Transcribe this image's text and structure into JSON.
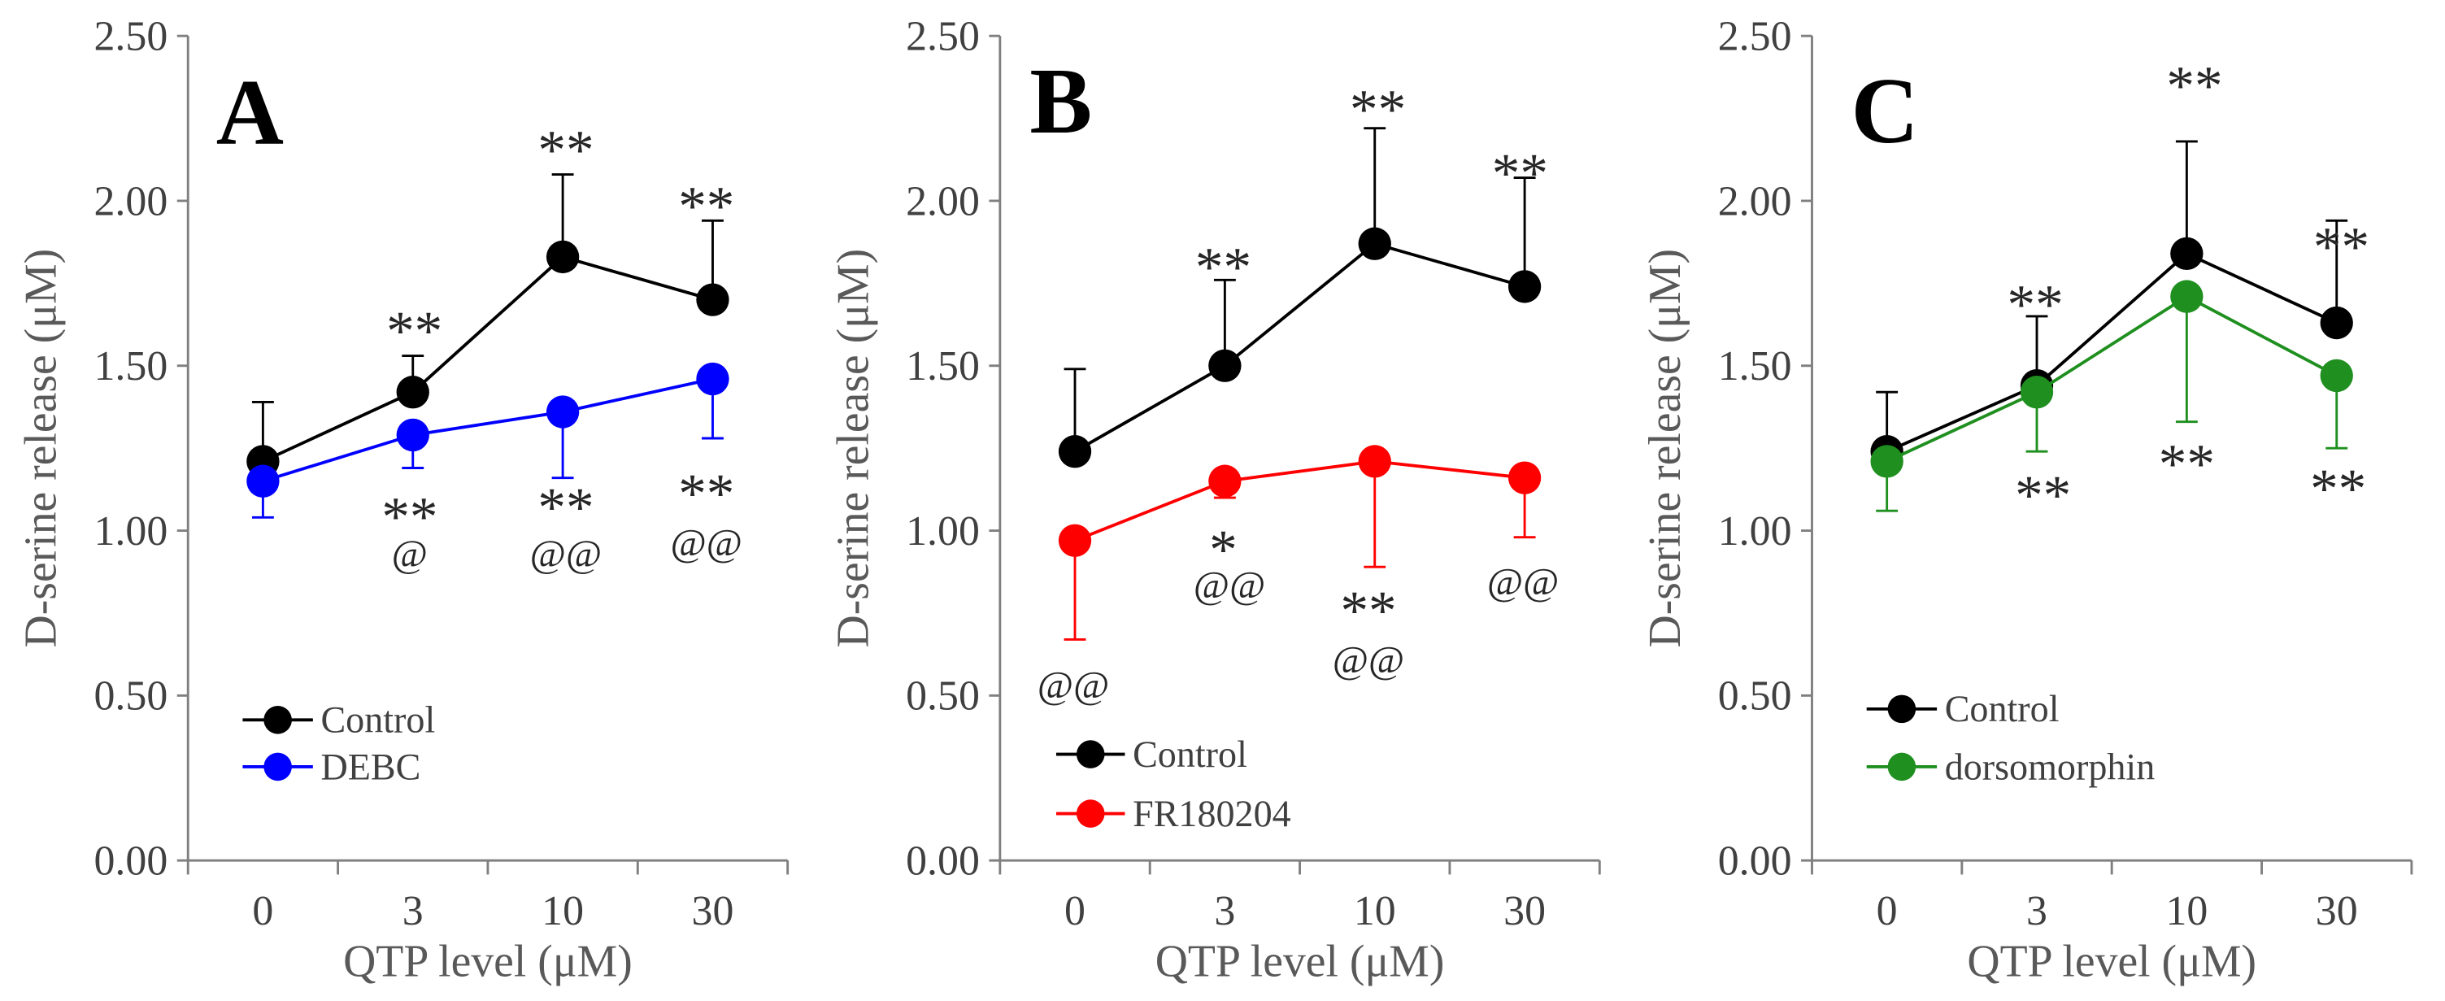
{
  "chart_data": [
    {
      "panel": "A",
      "type": "line",
      "categories": [
        "0",
        "3",
        "10",
        "30"
      ],
      "xlabel": "QTP level (μM)",
      "ylabel": "D-serine release (μM)",
      "ylim": [
        0,
        2.5
      ],
      "yticks": [
        0,
        0.5,
        1,
        1.5,
        2,
        2.5
      ],
      "ytick_labels": [
        "0.00",
        "0.50",
        "1.00",
        "1.50",
        "2.00",
        "2.50"
      ],
      "grid": false,
      "series": [
        {
          "name": "Control",
          "color": "#000000",
          "values": [
            1.21,
            1.42,
            1.83,
            1.7
          ],
          "error_bar_ends": [
            1.39,
            1.53,
            2.08,
            1.94
          ]
        },
        {
          "name": "DEBC",
          "color": "#0000FF",
          "values": [
            1.15,
            1.29,
            1.36,
            1.46
          ],
          "error_bar_ends": [
            1.04,
            1.19,
            1.16,
            1.28
          ]
        }
      ],
      "annotations": [
        {
          "text": "**",
          "category_index": 1,
          "series_index": 0
        },
        {
          "text": "**",
          "category_index": 2,
          "series_index": 0
        },
        {
          "text": "**",
          "category_index": 3,
          "series_index": 0
        },
        {
          "text": "**",
          "category_index": 1,
          "series_index": 1
        },
        {
          "text": "@",
          "category_index": 1,
          "series_index": 1
        },
        {
          "text": "**",
          "category_index": 2,
          "series_index": 1
        },
        {
          "text": "@@",
          "category_index": 2,
          "series_index": 1
        },
        {
          "text": "**",
          "category_index": 3,
          "series_index": 1
        },
        {
          "text": "@@",
          "category_index": 3,
          "series_index": 1
        }
      ]
    },
    {
      "panel": "B",
      "type": "line",
      "categories": [
        "0",
        "3",
        "10",
        "30"
      ],
      "xlabel": "QTP level (μM)",
      "ylabel": "D-serine release (μM)",
      "ylim": [
        0,
        2.5
      ],
      "yticks": [
        0,
        0.5,
        1,
        1.5,
        2,
        2.5
      ],
      "ytick_labels": [
        "0.00",
        "0.50",
        "1.00",
        "1.50",
        "2.00",
        "2.50"
      ],
      "grid": false,
      "series": [
        {
          "name": "Control",
          "color": "#000000",
          "values": [
            1.24,
            1.5,
            1.87,
            1.74
          ],
          "error_bar_ends": [
            1.49,
            1.76,
            2.22,
            2.07
          ]
        },
        {
          "name": "FR180204",
          "color": "#FF0000",
          "values": [
            0.97,
            1.15,
            1.21,
            1.16
          ],
          "error_bar_ends": [
            0.67,
            1.1,
            0.89,
            0.98
          ]
        }
      ],
      "annotations": [
        {
          "text": "**",
          "category_index": 1,
          "series_index": 0
        },
        {
          "text": "**",
          "category_index": 2,
          "series_index": 0
        },
        {
          "text": "**",
          "category_index": 3,
          "series_index": 0
        },
        {
          "text": "@@",
          "category_index": 0,
          "series_index": 1
        },
        {
          "text": "*",
          "category_index": 1,
          "series_index": 1
        },
        {
          "text": "@@",
          "category_index": 1,
          "series_index": 1
        },
        {
          "text": "**",
          "category_index": 2,
          "series_index": 1
        },
        {
          "text": "@@",
          "category_index": 2,
          "series_index": 1
        },
        {
          "text": "@@",
          "category_index": 3,
          "series_index": 1
        }
      ]
    },
    {
      "panel": "C",
      "type": "line",
      "categories": [
        "0",
        "3",
        "10",
        "30"
      ],
      "xlabel": "QTP level (μM)",
      "ylabel": "D-serine release (μM)",
      "ylim": [
        0,
        2.5
      ],
      "yticks": [
        0,
        0.5,
        1,
        1.5,
        2,
        2.5
      ],
      "ytick_labels": [
        "0.00",
        "0.50",
        "1.00",
        "1.50",
        "2.00",
        "2.50"
      ],
      "grid": false,
      "series": [
        {
          "name": "Control",
          "color": "#000000",
          "values": [
            1.24,
            1.44,
            1.84,
            1.63
          ],
          "error_bar_ends": [
            1.42,
            1.65,
            2.18,
            1.94
          ]
        },
        {
          "name": "dorsomorphin",
          "color": "#1F8F1F",
          "values": [
            1.21,
            1.42,
            1.71,
            1.47
          ],
          "error_bar_ends": [
            1.06,
            1.24,
            1.33,
            1.25
          ]
        }
      ],
      "annotations": [
        {
          "text": "**",
          "category_index": 1,
          "series_index": 0
        },
        {
          "text": "**",
          "category_index": 2,
          "series_index": 0
        },
        {
          "text": "**",
          "category_index": 3,
          "series_index": 0
        },
        {
          "text": "**",
          "category_index": 1,
          "series_index": 1
        },
        {
          "text": "**",
          "category_index": 2,
          "series_index": 1
        },
        {
          "text": "**",
          "category_index": 3,
          "series_index": 1
        }
      ]
    }
  ]
}
